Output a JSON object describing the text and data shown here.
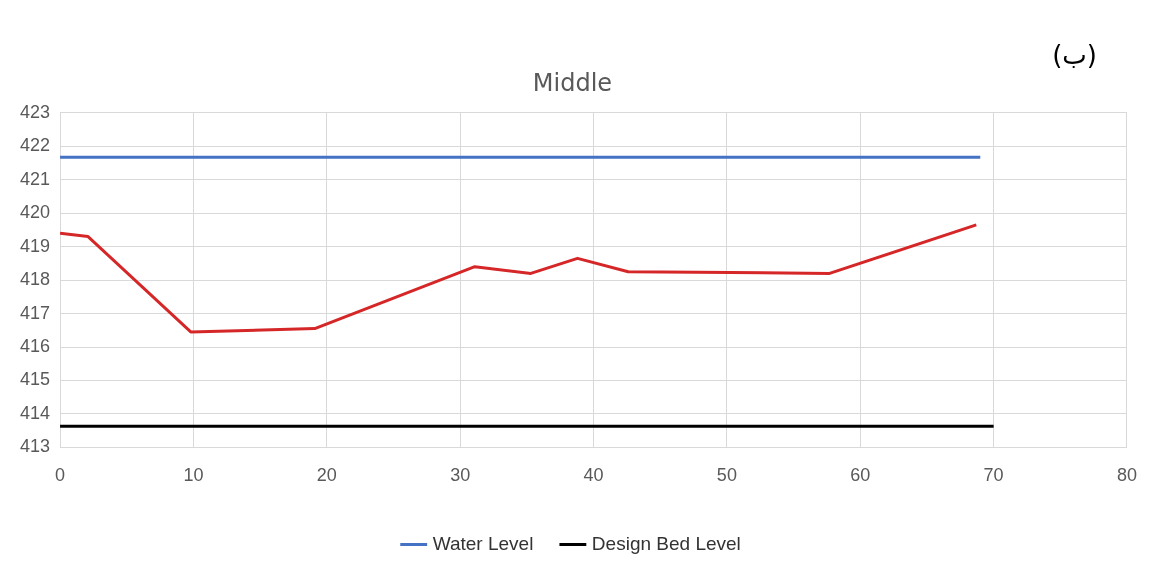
{
  "chart_data": {
    "type": "line",
    "title": "Middle",
    "annotations": [
      "(ب)"
    ],
    "series": [
      {
        "name": "Water Level",
        "color": "#4472c4",
        "x": [
          0,
          69
        ],
        "values": [
          421.67,
          421.67
        ]
      },
      {
        "name": "Design Bed Level",
        "color": "#000000",
        "x": [
          0,
          70
        ],
        "values": [
          413.63,
          413.63
        ]
      },
      {
        "color": "#d62728",
        "x": [
          0,
          2.1,
          9.8,
          19.1,
          31.1,
          35.3,
          38.8,
          42.6,
          57.7,
          68.7
        ],
        "values": [
          419.4,
          419.3,
          416.45,
          416.55,
          418.4,
          418.2,
          418.65,
          418.25,
          418.2,
          419.65
        ]
      }
    ],
    "xlim": [
      0,
      80
    ],
    "xticks": [
      0,
      10,
      20,
      30,
      40,
      50,
      60,
      70,
      80
    ],
    "ylim": [
      413,
      423
    ],
    "yticks": [
      413,
      414,
      415,
      416,
      417,
      418,
      419,
      420,
      421,
      422,
      423
    ],
    "grid": true,
    "legend": "bottom",
    "marker": "none",
    "line_style": "solid"
  }
}
